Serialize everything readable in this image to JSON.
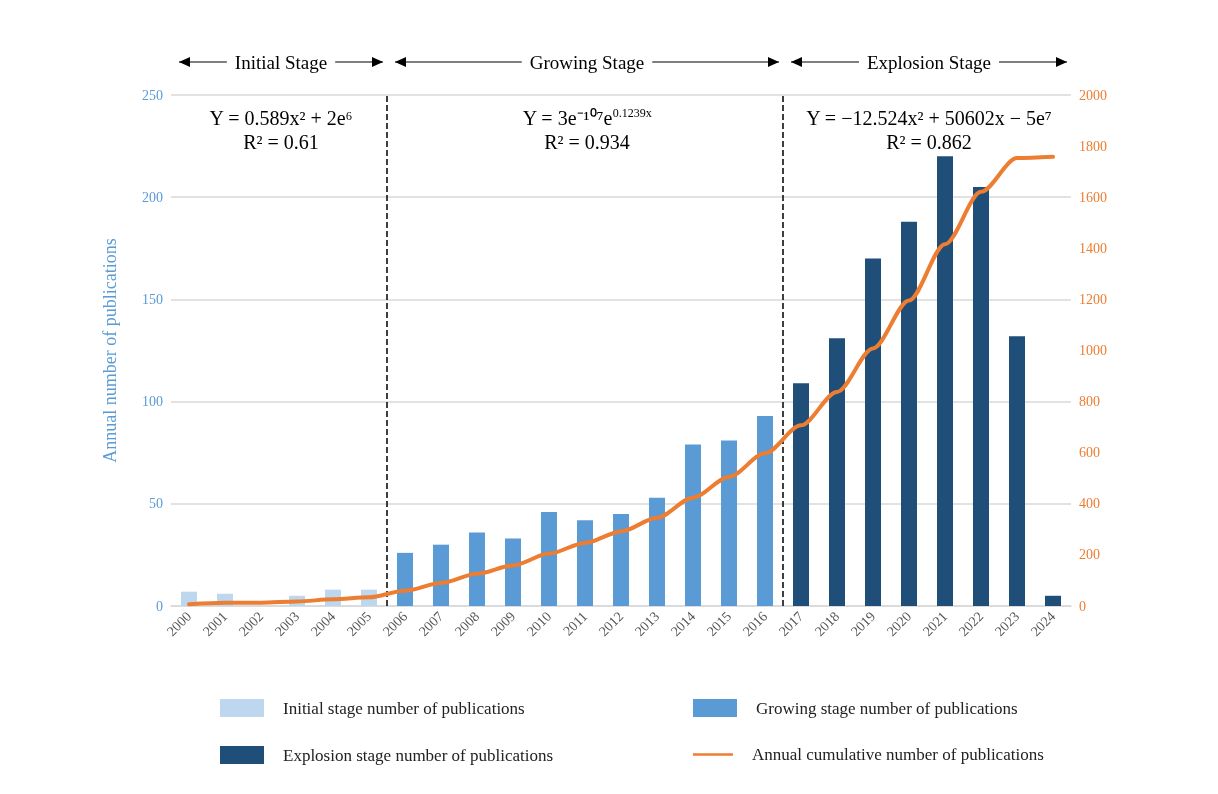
{
  "chart_data": {
    "type": "bar",
    "ylabel": "Annual number of publications",
    "x": [
      2000,
      2001,
      2002,
      2003,
      2004,
      2005,
      2006,
      2007,
      2008,
      2009,
      2010,
      2011,
      2012,
      2013,
      2014,
      2015,
      2016,
      2017,
      2018,
      2019,
      2020,
      2021,
      2022,
      2023,
      2024
    ],
    "series": [
      {
        "name": "Initial stage number of publications",
        "color": "#bdd7ee",
        "values": [
          7,
          6,
          0,
          5,
          8,
          8,
          null,
          null,
          null,
          null,
          null,
          null,
          null,
          null,
          null,
          null,
          null,
          null,
          null,
          null,
          null,
          null,
          null,
          null,
          null
        ]
      },
      {
        "name": "Growing stage number of publications",
        "color": "#5b9bd5",
        "values": [
          null,
          null,
          null,
          null,
          null,
          null,
          26,
          30,
          36,
          33,
          46,
          42,
          45,
          53,
          79,
          81,
          93,
          null,
          null,
          null,
          null,
          null,
          null,
          null,
          null
        ]
      },
      {
        "name": "Explosion stage number of publications",
        "color": "#1f4e79",
        "values": [
          null,
          null,
          null,
          null,
          null,
          null,
          null,
          null,
          null,
          null,
          null,
          null,
          null,
          null,
          null,
          null,
          null,
          109,
          131,
          170,
          188,
          220,
          205,
          132,
          5
        ]
      },
      {
        "name": "Annual cumulative number of publications",
        "type": "line",
        "axis": "y2",
        "color": "#ed7d31",
        "values": [
          7,
          13,
          13,
          18,
          26,
          34,
          60,
          90,
          126,
          159,
          205,
          247,
          292,
          345,
          424,
          505,
          598,
          707,
          838,
          1008,
          1196,
          1416,
          1621,
          1753,
          1758
        ]
      }
    ],
    "xlim": [
      1999.5,
      2024.5
    ],
    "xticks": [
      2000,
      2001,
      2002,
      2003,
      2004,
      2005,
      2006,
      2007,
      2008,
      2009,
      2010,
      2011,
      2012,
      2013,
      2014,
      2015,
      2016,
      2017,
      2018,
      2019,
      2020,
      2021,
      2022,
      2023,
      2024
    ],
    "ylim": [
      0,
      250
    ],
    "yticks": [
      0,
      50,
      100,
      150,
      200,
      250
    ],
    "y2lim": [
      0,
      2000
    ],
    "y2ticks": [
      0,
      200,
      400,
      600,
      800,
      1000,
      1200,
      1400,
      1600,
      1800,
      2000
    ],
    "ref_lines": [
      {
        "axis": "x",
        "value": 2005.5,
        "color": "#000000",
        "line_style": "dashed"
      },
      {
        "axis": "x",
        "value": 2016.5,
        "color": "#000000",
        "line_style": "dashed"
      }
    ],
    "annotations": [
      "Initial Stage",
      "Growing Stage",
      "Explosion Stage",
      "Y = 0.589x² + 2e⁶",
      "Y = 3e⁻¹⁰⁷e$^{0.1239x}$",
      "Y = −12.524x² + 50602x − 5e⁷",
      "R² = 0.61",
      "R² = 0.934",
      "R² = 0.862"
    ],
    "grid": "y",
    "legend": "bottom",
    "marker": "none",
    "line_style": "solid"
  }
}
